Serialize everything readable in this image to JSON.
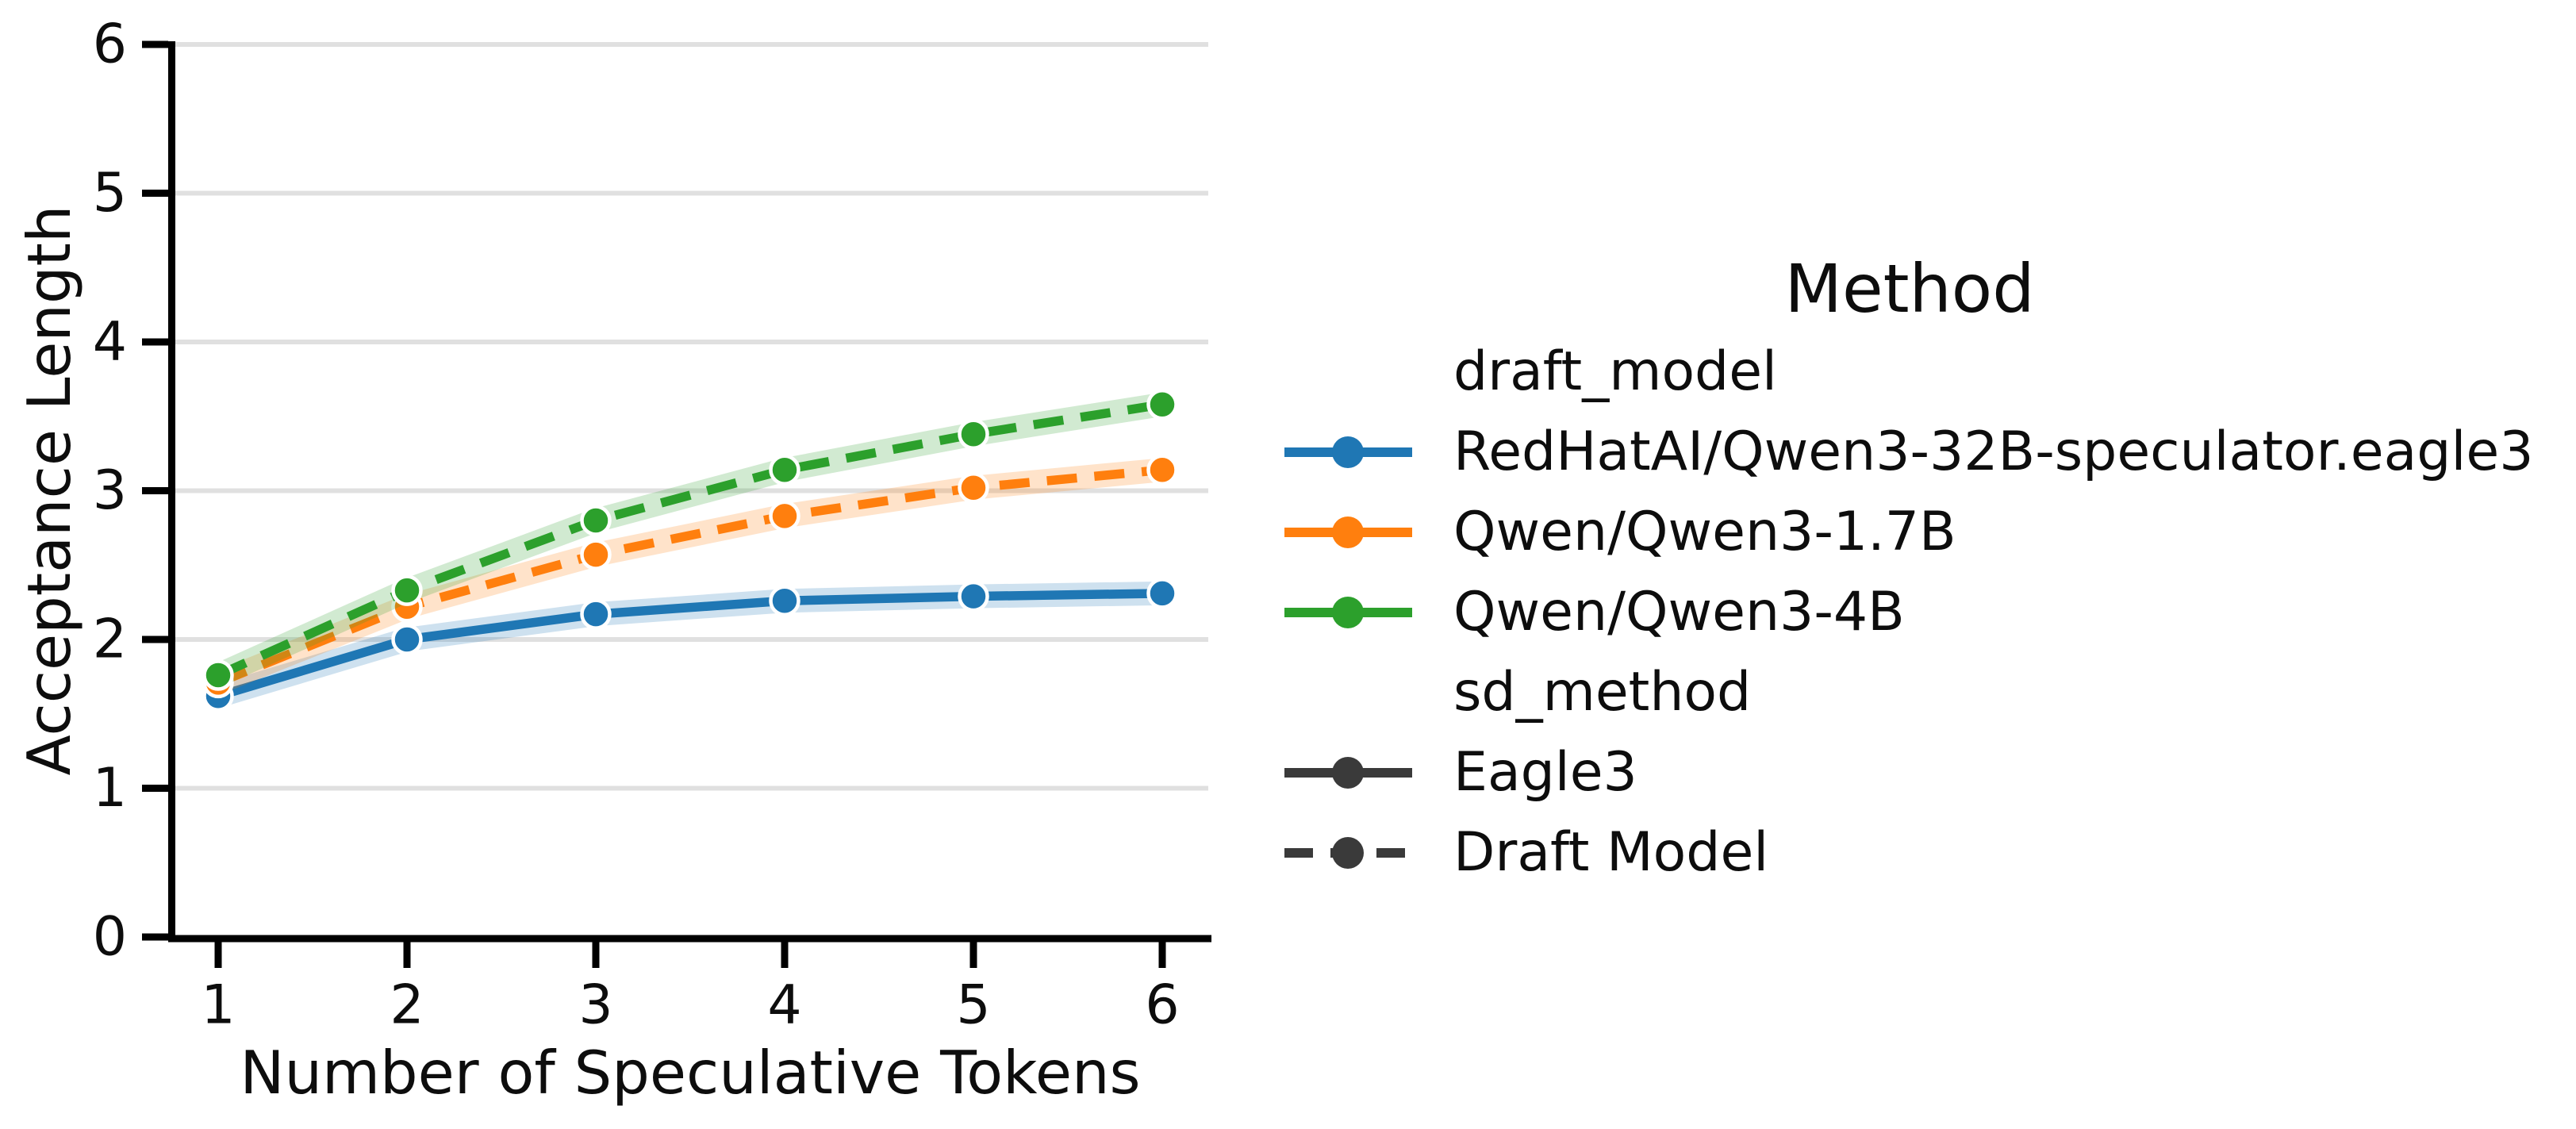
{
  "chart_data": {
    "type": "line",
    "title": "",
    "xlabel": "Number of Speculative Tokens",
    "ylabel": "Acceptance Length",
    "x": [
      1,
      2,
      3,
      4,
      5,
      6
    ],
    "xticks": [
      1,
      2,
      3,
      4,
      5,
      6
    ],
    "yticks": [
      0,
      1,
      2,
      3,
      4,
      5,
      6
    ],
    "xlim": [
      0.74,
      6.26
    ],
    "ylim": [
      0,
      6
    ],
    "grid": "horizontal-only",
    "legend_position": "right",
    "series": [
      {
        "name": "RedHatAI/Qwen3-32B-speculator.eagle3",
        "sd_method": "Eagle3",
        "line_style": "solid",
        "color": "#1f77b4",
        "values": [
          1.62,
          2.0,
          2.17,
          2.26,
          2.29,
          2.31
        ]
      },
      {
        "name": "Qwen/Qwen3-1.7B",
        "sd_method": "Draft Model",
        "line_style": "dashed",
        "color": "#ff7f0e",
        "values": [
          1.71,
          2.22,
          2.57,
          2.83,
          3.02,
          3.14
        ]
      },
      {
        "name": "Qwen/Qwen3-4B",
        "sd_method": "Draft Model",
        "line_style": "dashed",
        "color": "#2ca02c",
        "values": [
          1.76,
          2.33,
          2.8,
          3.14,
          3.38,
          3.58
        ]
      }
    ]
  },
  "legend": {
    "title": "Method",
    "sections": [
      {
        "heading": "draft_model",
        "items": [
          {
            "label": "RedHatAI/Qwen3-32B-speculator.eagle3",
            "color": "#1f77b4",
            "line_style": "solid"
          },
          {
            "label": "Qwen/Qwen3-1.7B",
            "color": "#ff7f0e",
            "line_style": "solid"
          },
          {
            "label": "Qwen/Qwen3-4B",
            "color": "#2ca02c",
            "line_style": "solid"
          }
        ]
      },
      {
        "heading": "sd_method",
        "items": [
          {
            "label": "Eagle3",
            "color": "#3a3a3a",
            "line_style": "solid"
          },
          {
            "label": "Draft Model",
            "color": "#3a3a3a",
            "line_style": "dashed"
          }
        ]
      }
    ]
  },
  "colors": {
    "background": "#ffffff",
    "grid": "#e0e0e0",
    "spine": "#000000",
    "text": "#0d0d0d",
    "marker_edge": "#ffffff"
  }
}
